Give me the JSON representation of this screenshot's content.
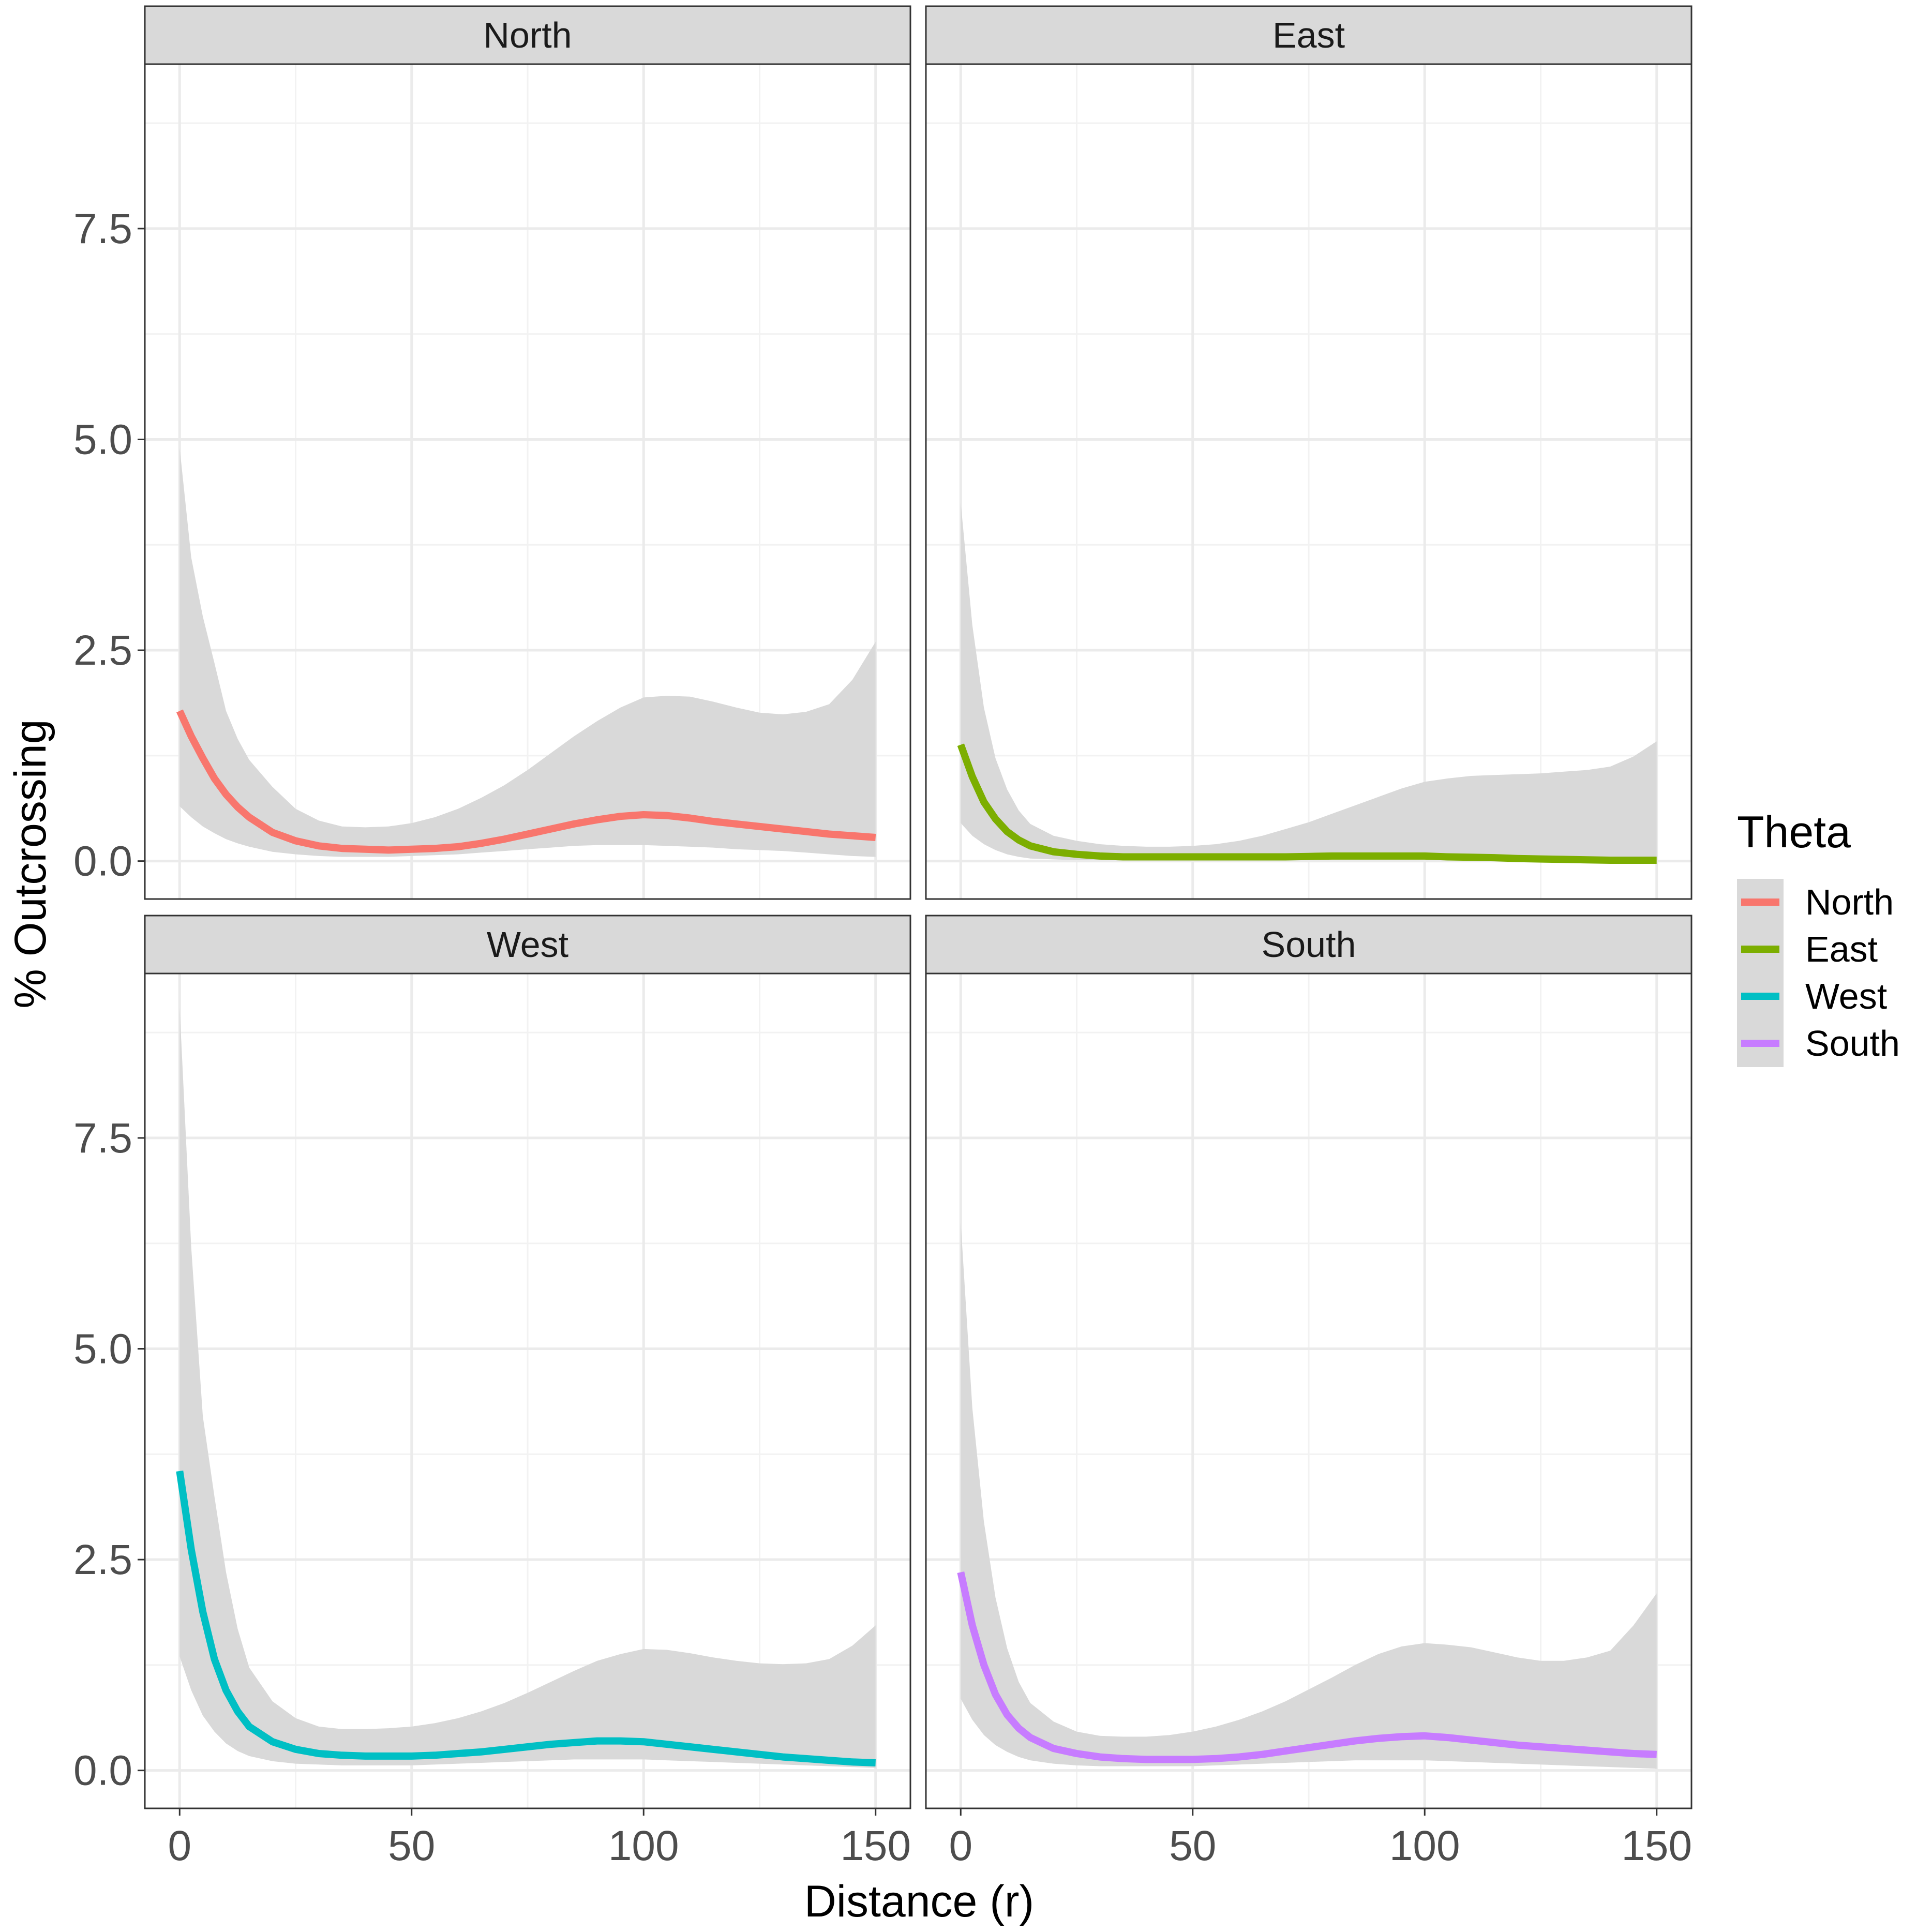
{
  "chart_data": {
    "type": "line",
    "xlabel": "Distance (r)",
    "ylabel": "% Outcrossing",
    "xlim": [
      -7.5,
      157.5
    ],
    "ylim": [
      -0.45,
      9.45
    ],
    "x_ticks": [
      0,
      50,
      100,
      150
    ],
    "x_tick_labels": [
      "0",
      "50",
      "100",
      "150"
    ],
    "y_ticks": [
      0,
      2.5,
      5,
      7.5
    ],
    "y_tick_labels": [
      "0.0",
      "2.5",
      "5.0",
      "7.5"
    ],
    "grid": true,
    "legend": {
      "title": "Theta",
      "position": "right",
      "entries": [
        {
          "label": "North",
          "color": "#F8766D"
        },
        {
          "label": "East",
          "color": "#7CAE00"
        },
        {
          "label": "West",
          "color": "#00BFC4"
        },
        {
          "label": "South",
          "color": "#C77CFF"
        }
      ]
    },
    "ribbon_color": "#d9d9d9",
    "panels": [
      {
        "name": "North",
        "color": "#F8766D",
        "x": [
          0,
          2.5,
          5,
          7.5,
          10,
          12.5,
          15,
          20,
          25,
          30,
          35,
          40,
          45,
          50,
          55,
          60,
          65,
          70,
          75,
          80,
          85,
          90,
          95,
          100,
          105,
          110,
          115,
          120,
          125,
          130,
          135,
          140,
          145,
          150
        ],
        "y": [
          1.78,
          1.48,
          1.22,
          0.98,
          0.79,
          0.64,
          0.52,
          0.34,
          0.24,
          0.18,
          0.15,
          0.14,
          0.13,
          0.14,
          0.15,
          0.17,
          0.21,
          0.26,
          0.32,
          0.38,
          0.44,
          0.49,
          0.53,
          0.55,
          0.54,
          0.51,
          0.47,
          0.44,
          0.41,
          0.38,
          0.35,
          0.32,
          0.3,
          0.28
        ],
        "lower": [
          0.65,
          0.52,
          0.41,
          0.33,
          0.26,
          0.21,
          0.17,
          0.11,
          0.08,
          0.06,
          0.05,
          0.05,
          0.05,
          0.06,
          0.07,
          0.08,
          0.1,
          0.12,
          0.14,
          0.16,
          0.18,
          0.19,
          0.19,
          0.19,
          0.18,
          0.17,
          0.16,
          0.14,
          0.13,
          0.12,
          0.1,
          0.08,
          0.06,
          0.05
        ],
        "upper": [
          4.9,
          3.6,
          2.9,
          2.35,
          1.78,
          1.45,
          1.2,
          0.88,
          0.62,
          0.48,
          0.41,
          0.4,
          0.41,
          0.45,
          0.52,
          0.62,
          0.75,
          0.9,
          1.08,
          1.28,
          1.48,
          1.66,
          1.82,
          1.94,
          1.96,
          1.95,
          1.89,
          1.82,
          1.76,
          1.74,
          1.77,
          1.86,
          2.15,
          2.6
        ]
      },
      {
        "name": "East",
        "color": "#7CAE00",
        "x": [
          0,
          2.5,
          5,
          7.5,
          10,
          12.5,
          15,
          20,
          25,
          30,
          35,
          40,
          45,
          50,
          55,
          60,
          65,
          70,
          75,
          80,
          85,
          90,
          95,
          100,
          105,
          110,
          115,
          120,
          125,
          130,
          135,
          140,
          145,
          150
        ],
        "y": [
          1.38,
          1.0,
          0.7,
          0.5,
          0.35,
          0.25,
          0.18,
          0.11,
          0.08,
          0.06,
          0.05,
          0.05,
          0.05,
          0.05,
          0.05,
          0.05,
          0.05,
          0.05,
          0.055,
          0.06,
          0.06,
          0.06,
          0.06,
          0.06,
          0.05,
          0.045,
          0.04,
          0.03,
          0.025,
          0.02,
          0.015,
          0.01,
          0.01,
          0.01
        ],
        "lower": [
          0.45,
          0.3,
          0.2,
          0.13,
          0.08,
          0.05,
          0.03,
          0.02,
          0.01,
          0.01,
          0.01,
          0.01,
          0.01,
          0.01,
          0.01,
          0.01,
          0.01,
          0.01,
          0.01,
          0.01,
          0.01,
          0.01,
          0.01,
          0.01,
          0.01,
          0.01,
          0.01,
          0.01,
          0.01,
          0.01,
          0.01,
          0.005,
          0.0,
          0.0
        ],
        "upper": [
          4.25,
          2.8,
          1.82,
          1.22,
          0.85,
          0.6,
          0.44,
          0.3,
          0.24,
          0.2,
          0.18,
          0.17,
          0.17,
          0.18,
          0.2,
          0.24,
          0.3,
          0.38,
          0.46,
          0.56,
          0.66,
          0.76,
          0.86,
          0.94,
          0.98,
          1.01,
          1.02,
          1.03,
          1.04,
          1.06,
          1.08,
          1.12,
          1.24,
          1.42
        ]
      },
      {
        "name": "West",
        "color": "#00BFC4",
        "x": [
          0,
          2.5,
          5,
          7.5,
          10,
          12.5,
          15,
          20,
          25,
          30,
          35,
          40,
          45,
          50,
          55,
          60,
          65,
          70,
          75,
          80,
          85,
          90,
          95,
          100,
          105,
          110,
          115,
          120,
          125,
          130,
          135,
          140,
          145,
          150
        ],
        "y": [
          3.55,
          2.62,
          1.88,
          1.32,
          0.95,
          0.7,
          0.52,
          0.34,
          0.25,
          0.2,
          0.18,
          0.17,
          0.17,
          0.17,
          0.18,
          0.2,
          0.22,
          0.25,
          0.28,
          0.31,
          0.33,
          0.35,
          0.35,
          0.34,
          0.31,
          0.28,
          0.25,
          0.22,
          0.19,
          0.16,
          0.14,
          0.12,
          0.1,
          0.09
        ],
        "lower": [
          1.35,
          0.95,
          0.65,
          0.46,
          0.32,
          0.23,
          0.17,
          0.11,
          0.08,
          0.07,
          0.06,
          0.06,
          0.06,
          0.06,
          0.07,
          0.08,
          0.09,
          0.1,
          0.11,
          0.12,
          0.13,
          0.13,
          0.13,
          0.13,
          0.12,
          0.11,
          0.1,
          0.09,
          0.08,
          0.07,
          0.06,
          0.05,
          0.04,
          0.03
        ],
        "upper": [
          9.05,
          6.2,
          4.2,
          3.25,
          2.35,
          1.68,
          1.22,
          0.82,
          0.62,
          0.52,
          0.49,
          0.49,
          0.5,
          0.52,
          0.56,
          0.62,
          0.7,
          0.8,
          0.92,
          1.05,
          1.18,
          1.3,
          1.38,
          1.44,
          1.43,
          1.39,
          1.34,
          1.3,
          1.27,
          1.26,
          1.27,
          1.32,
          1.48,
          1.72
        ]
      },
      {
        "name": "South",
        "color": "#C77CFF",
        "x": [
          0,
          2.5,
          5,
          7.5,
          10,
          12.5,
          15,
          20,
          25,
          30,
          35,
          40,
          45,
          50,
          55,
          60,
          65,
          70,
          75,
          80,
          85,
          90,
          95,
          100,
          105,
          110,
          115,
          120,
          125,
          130,
          135,
          140,
          145,
          150
        ],
        "y": [
          2.35,
          1.72,
          1.25,
          0.9,
          0.66,
          0.5,
          0.39,
          0.26,
          0.2,
          0.16,
          0.14,
          0.13,
          0.13,
          0.13,
          0.14,
          0.16,
          0.19,
          0.23,
          0.27,
          0.31,
          0.35,
          0.38,
          0.4,
          0.41,
          0.39,
          0.36,
          0.33,
          0.3,
          0.28,
          0.26,
          0.24,
          0.22,
          0.2,
          0.19
        ],
        "lower": [
          0.85,
          0.6,
          0.42,
          0.3,
          0.22,
          0.16,
          0.12,
          0.08,
          0.06,
          0.05,
          0.05,
          0.05,
          0.05,
          0.05,
          0.06,
          0.07,
          0.08,
          0.09,
          0.1,
          0.11,
          0.12,
          0.12,
          0.12,
          0.12,
          0.11,
          0.1,
          0.09,
          0.08,
          0.07,
          0.06,
          0.05,
          0.04,
          0.03,
          0.02
        ],
        "upper": [
          6.5,
          4.3,
          2.95,
          2.05,
          1.45,
          1.05,
          0.8,
          0.58,
          0.46,
          0.41,
          0.4,
          0.4,
          0.42,
          0.46,
          0.52,
          0.6,
          0.7,
          0.82,
          0.96,
          1.1,
          1.25,
          1.38,
          1.47,
          1.51,
          1.49,
          1.46,
          1.4,
          1.34,
          1.3,
          1.3,
          1.34,
          1.42,
          1.72,
          2.1
        ]
      }
    ]
  }
}
